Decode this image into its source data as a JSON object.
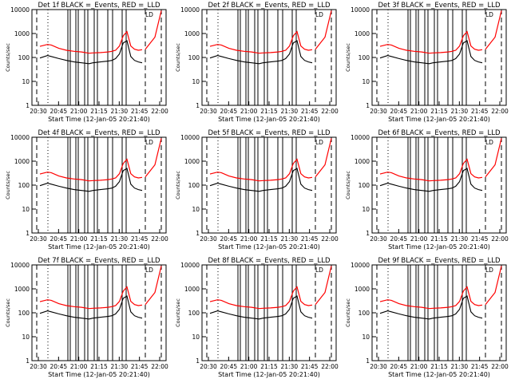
{
  "figure": {
    "colors": {
      "events": "#000000",
      "lld": "#ff0000",
      "background": "#ffffff"
    }
  },
  "chart_data": [
    {
      "type": "line",
      "title": "Det 1f BLACK =_Events, RED =_LLD",
      "xlabel": "Start Time (12-Jan-05 20:21:40)",
      "ylabel": "Counts/sec",
      "x_tick_labels": [
        "20:30",
        "20:45",
        "21:00",
        "21:15",
        "21:30",
        "21:45",
        "22:00"
      ],
      "y_tick_labels": [
        "1",
        "10",
        "100",
        "1000",
        "10000"
      ],
      "yscale": "log",
      "ylim": [
        1,
        10000
      ],
      "series": [],
      "panel_glyph": "LD"
    },
    {
      "type": "line",
      "title": "Det 2f BLACK =_Events, RED =_LLD",
      "xlabel": "Start Time (12-Jan-05 20:21:40)",
      "ylabel": "Counts/sec",
      "x_tick_labels": [
        "20:30",
        "20:45",
        "21:00",
        "21:15",
        "21:30",
        "21:45",
        "22:00"
      ],
      "y_tick_labels": [
        "1",
        "10",
        "100",
        "1000",
        "10000"
      ],
      "yscale": "log",
      "ylim": [
        1,
        10000
      ],
      "series": [],
      "panel_glyph": "LD"
    },
    {
      "type": "line",
      "title": "Det 3f BLACK =_Events, RED =_LLD",
      "xlabel": "Start Time (12-Jan-05 20:21:40)",
      "ylabel": "Counts/sec",
      "x_tick_labels": [
        "20:30",
        "20:45",
        "21:00",
        "21:15",
        "21:30",
        "21:45",
        "22:00"
      ],
      "y_tick_labels": [
        "1",
        "10",
        "100",
        "1000",
        "10000"
      ],
      "yscale": "log",
      "ylim": [
        1,
        10000
      ],
      "series": [],
      "panel_glyph": "LD"
    },
    {
      "type": "line",
      "title": "Det 4f BLACK =_Events, RED =_LLD",
      "xlabel": "Start Time (12-Jan-05 20:21:40)",
      "ylabel": "Counts/sec",
      "x_tick_labels": [
        "20:30",
        "20:45",
        "21:00",
        "21:15",
        "21:30",
        "21:45",
        "22:00"
      ],
      "y_tick_labels": [
        "1",
        "10",
        "100",
        "1000",
        "10000"
      ],
      "yscale": "log",
      "ylim": [
        1,
        10000
      ],
      "series": [],
      "panel_glyph": "LD"
    },
    {
      "type": "line",
      "title": "Det 5f BLACK =_Events, RED =_LLD",
      "xlabel": "Start Time (12-Jan-05 20:21:40)",
      "ylabel": "Counts/sec",
      "x_tick_labels": [
        "20:30",
        "20:45",
        "21:00",
        "21:15",
        "21:30",
        "21:45",
        "22:00"
      ],
      "y_tick_labels": [
        "1",
        "10",
        "100",
        "1000",
        "10000"
      ],
      "yscale": "log",
      "ylim": [
        1,
        10000
      ],
      "series": [],
      "panel_glyph": "LD"
    },
    {
      "type": "line",
      "title": "Det 6f BLACK =_Events, RED =_LLD",
      "xlabel": "Start Time (12-Jan-05 20:21:40)",
      "ylabel": "Counts/sec",
      "x_tick_labels": [
        "20:30",
        "20:45",
        "21:00",
        "21:15",
        "21:30",
        "21:45",
        "22:00"
      ],
      "y_tick_labels": [
        "1",
        "10",
        "100",
        "1000",
        "10000"
      ],
      "yscale": "log",
      "ylim": [
        1,
        10000
      ],
      "series": [],
      "panel_glyph": "LD"
    },
    {
      "type": "line",
      "title": "Det 7f BLACK =_Events, RED =_LLD",
      "xlabel": "Start Time (12-Jan-05 20:21:40)",
      "ylabel": "Counts/sec",
      "x_tick_labels": [
        "20:30",
        "20:45",
        "21:00",
        "21:15",
        "21:30",
        "21:45",
        "22:00"
      ],
      "y_tick_labels": [
        "1",
        "10",
        "100",
        "1000",
        "10000"
      ],
      "yscale": "log",
      "ylim": [
        1,
        10000
      ],
      "series": [],
      "panel_glyph": "LD"
    },
    {
      "type": "line",
      "title": "Det 8f BLACK =_Events, RED =_LLD",
      "xlabel": "Start Time (12-Jan-05 20:21:40)",
      "ylabel": "Counts/sec",
      "x_tick_labels": [
        "20:30",
        "20:45",
        "21:00",
        "21:15",
        "21:30",
        "21:45",
        "22:00"
      ],
      "y_tick_labels": [
        "1",
        "10",
        "100",
        "1000",
        "10000"
      ],
      "yscale": "log",
      "ylim": [
        1,
        10000
      ],
      "series": [],
      "panel_glyph": "LD"
    },
    {
      "type": "line",
      "title": "Det 9f BLACK =_Events, RED =_LLD",
      "xlabel": "Start Time (12-Jan-05 20:21:40)",
      "ylabel": "Counts/sec",
      "x_tick_labels": [
        "20:30",
        "20:45",
        "21:00",
        "21:15",
        "21:30",
        "21:45",
        "22:00"
      ],
      "y_tick_labels": [
        "1",
        "10",
        "100",
        "1000",
        "10000"
      ],
      "yscale": "log",
      "ylim": [
        1,
        10000
      ],
      "series": [],
      "panel_glyph": "LD"
    }
  ],
  "shared_events": {
    "lld_red_min": [
      20.35,
      20.45,
      20.5,
      20.6,
      20.7,
      20.8,
      20.9,
      21.0,
      21.05,
      21.15,
      21.25,
      21.3,
      21.35,
      21.4,
      21.45,
      21.5,
      21.55,
      21.6,
      21.65,
      21.7
    ],
    "lld_red_val": [
      290,
      350,
      330,
      240,
      200,
      180,
      170,
      150,
      155,
      160,
      170,
      180,
      200,
      300,
      800,
      1200,
      300,
      220,
      200,
      210
    ],
    "events_black_min": [
      20.35,
      20.45,
      20.5,
      20.6,
      20.7,
      20.8,
      20.9,
      21.0,
      21.05,
      21.15,
      21.25,
      21.3,
      21.35,
      21.4,
      21.45,
      21.5,
      21.55,
      21.6,
      21.65,
      21.7
    ],
    "events_black_val": [
      95,
      120,
      110,
      90,
      75,
      65,
      60,
      55,
      60,
      65,
      70,
      75,
      90,
      140,
      400,
      500,
      110,
      75,
      65,
      60
    ]
  }
}
